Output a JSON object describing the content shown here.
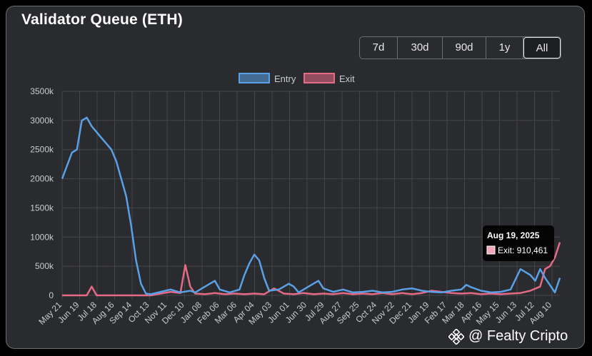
{
  "header": {
    "title": "Validator Queue (ETH)"
  },
  "range_buttons": [
    "7d",
    "30d",
    "90d",
    "1y",
    "All"
  ],
  "active_range": "All",
  "watermark": {
    "text": "@ Fealty Cripto"
  },
  "tooltip": {
    "date": "Aug 19, 2025",
    "label": "Exit: 910,461"
  },
  "colors": {
    "entry": "#5aa0e6",
    "exit": "#e56a86",
    "grid": "#44464b",
    "text": "#c9cbd0"
  },
  "chart_data": {
    "type": "line",
    "title": "Validator Queue (ETH)",
    "xlabel": "",
    "ylabel": "",
    "ylim": [
      0,
      3500000
    ],
    "y_ticks": [
      "0",
      "500k",
      "1000k",
      "1500k",
      "2000k",
      "2500k",
      "3000k",
      "3500k"
    ],
    "x_ticks": [
      "May 21",
      "Jun 19",
      "Jul 18",
      "Aug 16",
      "Sep 14",
      "Oct 13",
      "Nov 11",
      "Dec 10",
      "Jan 08",
      "Feb 06",
      "Mar 06",
      "Apr 04",
      "May 03",
      "Jun 01",
      "Jun 30",
      "Jul 29",
      "Aug 27",
      "Sep 25",
      "Oct 24",
      "Nov 22",
      "Dec 21",
      "Jan 19",
      "Feb 17",
      "Mar 18",
      "Apr 16",
      "May 15",
      "Jun 13",
      "Jul 12",
      "Aug 10"
    ],
    "legend_position": "top-center",
    "grid": true,
    "series": [
      {
        "name": "Entry",
        "points": [
          [
            0,
            2000000
          ],
          [
            2,
            2450000
          ],
          [
            3,
            2500000
          ],
          [
            4,
            3000000
          ],
          [
            5,
            3050000
          ],
          [
            6,
            2900000
          ],
          [
            7,
            2800000
          ],
          [
            8,
            2700000
          ],
          [
            9,
            2600000
          ],
          [
            10,
            2500000
          ],
          [
            11,
            2300000
          ],
          [
            12,
            2000000
          ],
          [
            13,
            1700000
          ],
          [
            14,
            1200000
          ],
          [
            15,
            600000
          ],
          [
            16,
            200000
          ],
          [
            17,
            30000
          ],
          [
            18,
            20000
          ],
          [
            20,
            60000
          ],
          [
            22,
            100000
          ],
          [
            24,
            50000
          ],
          [
            26,
            80000
          ],
          [
            27,
            50000
          ],
          [
            29,
            150000
          ],
          [
            31,
            250000
          ],
          [
            32,
            100000
          ],
          [
            34,
            50000
          ],
          [
            36,
            100000
          ],
          [
            37,
            350000
          ],
          [
            38,
            550000
          ],
          [
            39,
            700000
          ],
          [
            40,
            600000
          ],
          [
            41,
            300000
          ],
          [
            42,
            80000
          ],
          [
            44,
            100000
          ],
          [
            46,
            200000
          ],
          [
            47,
            150000
          ],
          [
            48,
            50000
          ],
          [
            50,
            150000
          ],
          [
            52,
            250000
          ],
          [
            53,
            120000
          ],
          [
            55,
            60000
          ],
          [
            57,
            100000
          ],
          [
            59,
            50000
          ],
          [
            61,
            60000
          ],
          [
            63,
            80000
          ],
          [
            65,
            50000
          ],
          [
            67,
            60000
          ],
          [
            69,
            100000
          ],
          [
            71,
            120000
          ],
          [
            73,
            80000
          ],
          [
            75,
            60000
          ],
          [
            77,
            50000
          ],
          [
            79,
            80000
          ],
          [
            81,
            100000
          ],
          [
            82,
            180000
          ],
          [
            83,
            140000
          ],
          [
            85,
            80000
          ],
          [
            87,
            50000
          ],
          [
            89,
            60000
          ],
          [
            91,
            100000
          ],
          [
            93,
            450000
          ],
          [
            95,
            350000
          ],
          [
            96,
            250000
          ],
          [
            97,
            450000
          ],
          [
            98,
            300000
          ],
          [
            100,
            50000
          ],
          [
            101,
            300000
          ]
        ]
      },
      {
        "name": "Exit",
        "points": [
          [
            0,
            0
          ],
          [
            5,
            0
          ],
          [
            6,
            150000
          ],
          [
            7,
            0
          ],
          [
            18,
            0
          ],
          [
            20,
            30000
          ],
          [
            22,
            60000
          ],
          [
            24,
            40000
          ],
          [
            25,
            520000
          ],
          [
            26,
            150000
          ],
          [
            27,
            30000
          ],
          [
            29,
            20000
          ],
          [
            31,
            40000
          ],
          [
            33,
            20000
          ],
          [
            35,
            30000
          ],
          [
            37,
            20000
          ],
          [
            39,
            30000
          ],
          [
            41,
            20000
          ],
          [
            43,
            120000
          ],
          [
            45,
            30000
          ],
          [
            47,
            20000
          ],
          [
            49,
            40000
          ],
          [
            51,
            20000
          ],
          [
            53,
            30000
          ],
          [
            55,
            20000
          ],
          [
            57,
            40000
          ],
          [
            59,
            20000
          ],
          [
            61,
            30000
          ],
          [
            63,
            20000
          ],
          [
            65,
            40000
          ],
          [
            67,
            20000
          ],
          [
            69,
            40000
          ],
          [
            71,
            20000
          ],
          [
            73,
            40000
          ],
          [
            75,
            80000
          ],
          [
            77,
            60000
          ],
          [
            79,
            40000
          ],
          [
            81,
            30000
          ],
          [
            83,
            40000
          ],
          [
            85,
            20000
          ],
          [
            87,
            30000
          ],
          [
            89,
            20000
          ],
          [
            91,
            30000
          ],
          [
            93,
            40000
          ],
          [
            95,
            80000
          ],
          [
            97,
            150000
          ],
          [
            98,
            450000
          ],
          [
            99,
            500000
          ],
          [
            100,
            650000
          ],
          [
            101,
            910461
          ]
        ]
      }
    ]
  }
}
